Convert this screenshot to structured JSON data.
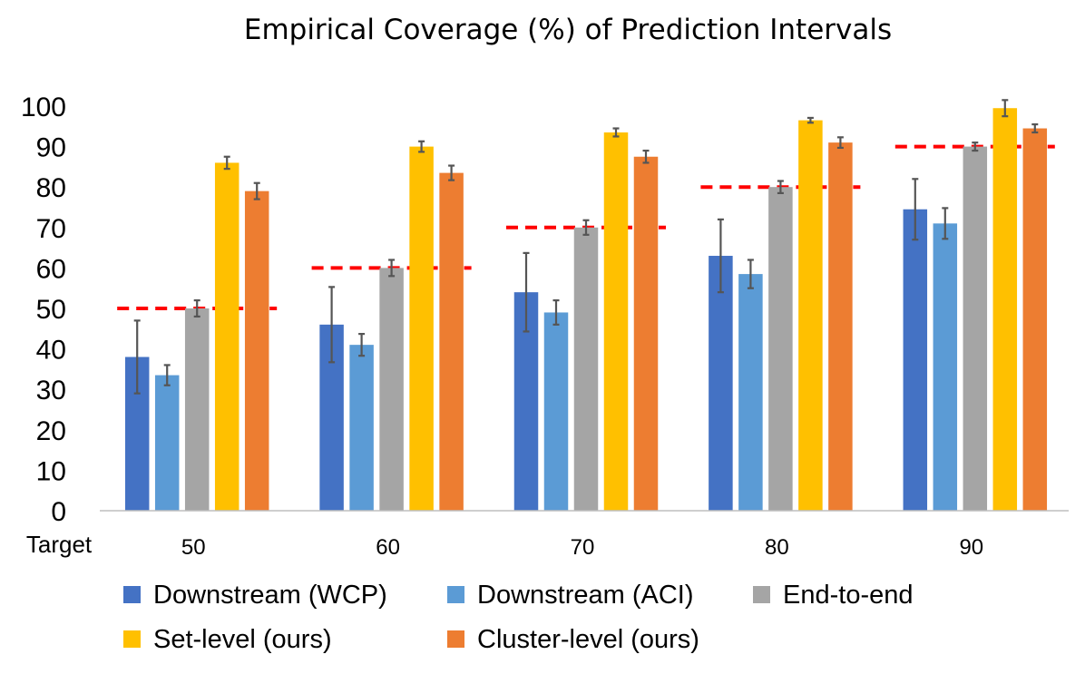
{
  "chart_data": {
    "type": "bar",
    "title": "Empirical Coverage (%) of Prediction Intervals",
    "xlabel": "Target",
    "ylabel": "",
    "ylim": [
      0,
      100
    ],
    "yticks": [
      0,
      10,
      20,
      30,
      40,
      50,
      60,
      70,
      80,
      90,
      100
    ],
    "categories": [
      "50",
      "60",
      "70",
      "80",
      "90"
    ],
    "series": [
      {
        "name": "Downstream (WCP)",
        "color": "#4472C4",
        "values": [
          38,
          46,
          54,
          63,
          74.5
        ],
        "errors": [
          9,
          9.3,
          9.7,
          9,
          7.5
        ]
      },
      {
        "name": "Downstream (ACI)",
        "color": "#5B9BD5",
        "values": [
          33.5,
          41,
          49,
          58.5,
          71
        ],
        "errors": [
          2.5,
          2.7,
          3,
          3.5,
          3.8
        ]
      },
      {
        "name": "End-to-end",
        "color": "#A5A5A5",
        "values": [
          50,
          60,
          70,
          80,
          90
        ],
        "errors": [
          2,
          2,
          1.8,
          1.5,
          1
        ]
      },
      {
        "name": "Set-level (ours)",
        "color": "#FFC000",
        "values": [
          86,
          90,
          93.5,
          96.5,
          99.5
        ],
        "errors": [
          1.5,
          1.3,
          1,
          0.6,
          2
        ]
      },
      {
        "name": "Cluster-level (ours)",
        "color": "#ED7D31",
        "values": [
          79,
          83.5,
          87.5,
          91,
          94.5
        ],
        "errors": [
          2,
          1.8,
          1.5,
          1.3,
          1
        ]
      }
    ],
    "targets": [
      50,
      60,
      70,
      80,
      90
    ],
    "target_line_color": "#FF0000",
    "legend_position": "bottom",
    "grid": false
  }
}
